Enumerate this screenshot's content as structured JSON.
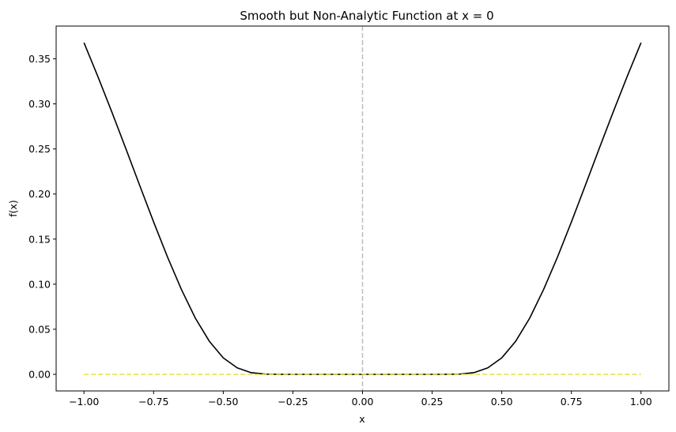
{
  "chart_data": {
    "type": "line",
    "title": "Smooth but Non-Analytic Function at x = 0",
    "xlabel": "x",
    "ylabel": "f(x)",
    "xlim": [
      -1.1,
      1.1
    ],
    "ylim": [
      -0.0184,
      0.3863
    ],
    "xticks": [
      -1.0,
      -0.75,
      -0.5,
      -0.25,
      0.0,
      0.25,
      0.5,
      0.75,
      1.0
    ],
    "xtick_labels": [
      "−1.00",
      "−0.75",
      "−0.50",
      "−0.25",
      "0.00",
      "0.25",
      "0.50",
      "0.75",
      "1.00"
    ],
    "yticks": [
      0.0,
      0.05,
      0.1,
      0.15,
      0.2,
      0.25,
      0.3,
      0.35
    ],
    "ytick_labels": [
      "0.00",
      "0.05",
      "0.10",
      "0.15",
      "0.20",
      "0.25",
      "0.30",
      "0.35"
    ],
    "grid": false,
    "legend": null,
    "series": [
      {
        "style": "solid",
        "color": "#000000",
        "x": [
          -1.0,
          -0.95,
          -0.9,
          -0.85,
          -0.8,
          -0.75,
          -0.7,
          -0.65,
          -0.6,
          -0.55,
          -0.5,
          -0.45,
          -0.4,
          -0.35,
          -0.3,
          -0.25,
          -0.2,
          -0.15,
          -0.1,
          -0.05,
          0.0,
          0.05,
          0.1,
          0.15,
          0.2,
          0.25,
          0.3,
          0.35,
          0.4,
          0.45,
          0.5,
          0.55,
          0.6,
          0.65,
          0.7,
          0.75,
          0.8,
          0.85,
          0.9,
          0.95,
          1.0
        ],
        "y": [
          0.3679,
          0.3302,
          0.291,
          0.2506,
          0.2096,
          0.169,
          0.13,
          0.094,
          0.0622,
          0.0367,
          0.0183,
          0.0072,
          0.0019,
          0.00028,
          1.5e-05,
          1e-07,
          0.0,
          0.0,
          0.0,
          0.0,
          0.0,
          0.0,
          0.0,
          0.0,
          0.0,
          1e-07,
          1.5e-05,
          0.00028,
          0.0019,
          0.0072,
          0.0183,
          0.0367,
          0.0622,
          0.094,
          0.13,
          0.169,
          0.2096,
          0.2506,
          0.291,
          0.3302,
          0.3679
        ]
      },
      {
        "style": "dashed",
        "color": "#e3e33a",
        "x": [
          -1.0,
          1.0
        ],
        "y": [
          0.0,
          0.0
        ]
      }
    ],
    "vlines": [
      {
        "x": 0.0,
        "style": "dashed",
        "color": "#bdbdbd"
      }
    ]
  }
}
